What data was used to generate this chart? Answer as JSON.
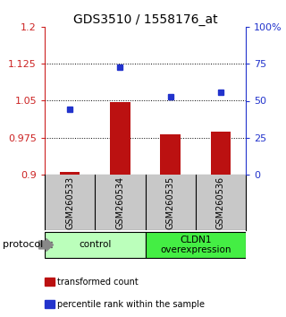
{
  "title": "GDS3510 / 1558176_at",
  "samples": [
    "GSM260533",
    "GSM260534",
    "GSM260535",
    "GSM260536"
  ],
  "bar_values": [
    0.905,
    1.047,
    0.982,
    0.987
  ],
  "dot_values": [
    44,
    73,
    53,
    56
  ],
  "ylim_left": [
    0.9,
    1.2
  ],
  "ylim_right": [
    0,
    100
  ],
  "yticks_left": [
    0.9,
    0.975,
    1.05,
    1.125,
    1.2
  ],
  "yticks_right": [
    0,
    25,
    50,
    75,
    100
  ],
  "ytick_labels_left": [
    "0.9",
    "0.975",
    "1.05",
    "1.125",
    "1.2"
  ],
  "ytick_labels_right": [
    "0",
    "25",
    "50",
    "75",
    "100%"
  ],
  "bar_color": "#bb1111",
  "dot_color": "#2233cc",
  "bar_baseline": 0.9,
  "groups": [
    {
      "label": "control",
      "samples": [
        0,
        1
      ],
      "color": "#bbffbb"
    },
    {
      "label": "CLDN1\noverexpression",
      "samples": [
        2,
        3
      ],
      "color": "#44ee44"
    }
  ],
  "protocol_label": "protocol",
  "legend_bar_label": "transformed count",
  "legend_dot_label": "percentile rank within the sample",
  "title_fontsize": 10,
  "tick_fontsize": 8,
  "axis_color_left": "#cc2222",
  "axis_color_right": "#2233cc",
  "bg_color": "#ffffff",
  "plot_bg_color": "#ffffff",
  "sample_bg_color": "#c8c8c8",
  "grid_color": "#222222"
}
